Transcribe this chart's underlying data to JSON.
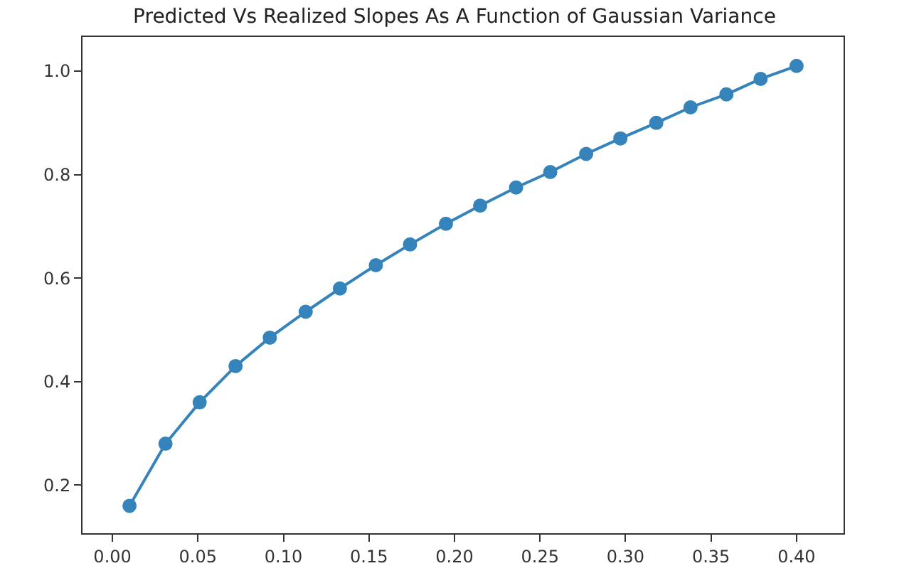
{
  "chart_data": {
    "type": "line",
    "title": "Predicted Vs Realized Slopes As A Function of Gaussian Variance",
    "x": [
      0.01,
      0.031,
      0.051,
      0.072,
      0.092,
      0.113,
      0.133,
      0.154,
      0.174,
      0.195,
      0.215,
      0.236,
      0.256,
      0.277,
      0.297,
      0.318,
      0.338,
      0.359,
      0.379,
      0.4
    ],
    "series": [
      {
        "color": "#1f77b4",
        "values": [
          0.16,
          0.28,
          0.36,
          0.43,
          0.485,
          0.535,
          0.58,
          0.625,
          0.665,
          0.705,
          0.74,
          0.775,
          0.805,
          0.84,
          0.87,
          0.9,
          0.93,
          0.955,
          0.985,
          1.01
        ]
      }
    ],
    "xlim": [
      -0.0175,
      0.4275
    ],
    "ylim": [
      0.107,
      1.066
    ],
    "xticks": [
      {
        "value": 0,
        "label": "0.00"
      },
      {
        "value": 0.05,
        "label": "0.05"
      },
      {
        "value": 0.1,
        "label": "0.10"
      },
      {
        "value": 0.15,
        "label": "0.15"
      },
      {
        "value": 0.2,
        "label": "0.20"
      },
      {
        "value": 0.25,
        "label": "0.25"
      },
      {
        "value": 0.3,
        "label": "0.30"
      },
      {
        "value": 0.35,
        "label": "0.35"
      },
      {
        "value": 0.4,
        "label": "0.40"
      }
    ],
    "yticks": [
      0.2,
      0.4,
      0.6,
      0.8,
      {
        "value": 1.0,
        "label": "1.0"
      }
    ],
    "marker": "circle",
    "line_style": "solid"
  }
}
